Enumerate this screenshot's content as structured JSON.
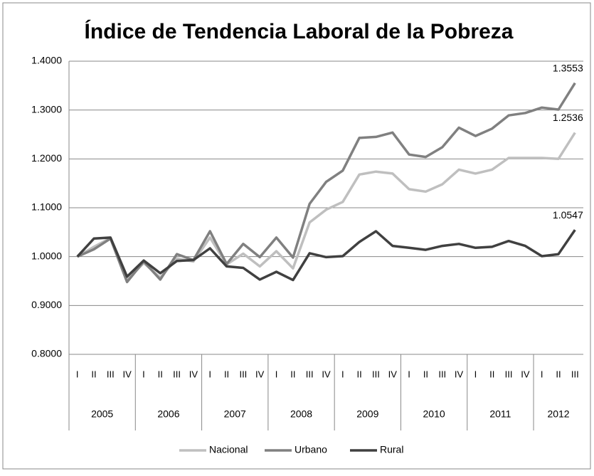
{
  "chart_data": {
    "type": "line",
    "title": "Índice de Tendencia Laboral de la Pobreza",
    "categories": [
      "I",
      "II",
      "III",
      "IV",
      "I",
      "II",
      "III",
      "IV",
      "I",
      "II",
      "III",
      "IV",
      "I",
      "II",
      "III",
      "IV",
      "I",
      "II",
      "III",
      "IV",
      "I",
      "II",
      "III",
      "IV",
      "I",
      "II",
      "III",
      "IV",
      "I",
      "II",
      "III"
    ],
    "category_groups": [
      "2005",
      "2006",
      "2007",
      "2008",
      "2009",
      "2010",
      "2011",
      "2012"
    ],
    "series": [
      {
        "name": "Nacional",
        "color": "#bfbfbf",
        "values": [
          1.0,
          1.02,
          1.038,
          0.952,
          0.987,
          0.957,
          0.996,
          0.99,
          1.039,
          0.984,
          1.006,
          0.98,
          1.011,
          0.976,
          1.07,
          1.096,
          1.112,
          1.168,
          1.174,
          1.17,
          1.138,
          1.133,
          1.148,
          1.178,
          1.17,
          1.178,
          1.202,
          1.202,
          1.202,
          1.2,
          1.2536
        ]
      },
      {
        "name": "Urbano",
        "color": "#808080",
        "values": [
          1.0,
          1.015,
          1.037,
          0.948,
          0.99,
          0.953,
          1.005,
          0.993,
          1.052,
          0.985,
          1.026,
          0.999,
          1.039,
          0.998,
          1.108,
          1.153,
          1.176,
          1.243,
          1.245,
          1.254,
          1.209,
          1.204,
          1.224,
          1.264,
          1.247,
          1.262,
          1.289,
          1.294,
          1.305,
          1.301,
          1.3553
        ]
      },
      {
        "name": "Rural",
        "color": "#404040",
        "values": [
          1.0,
          1.037,
          1.039,
          0.959,
          0.992,
          0.966,
          0.991,
          0.993,
          1.017,
          0.98,
          0.977,
          0.953,
          0.969,
          0.952,
          1.007,
          0.999,
          1.001,
          1.03,
          1.052,
          1.022,
          1.018,
          1.014,
          1.022,
          1.026,
          1.018,
          1.02,
          1.032,
          1.022,
          1.001,
          1.005,
          1.0547
        ]
      }
    ],
    "ylim": [
      0.8,
      1.4
    ],
    "yticks": [
      {
        "value": 0.8,
        "label": "0.8000"
      },
      {
        "value": 0.9,
        "label": "0.9000"
      },
      {
        "value": 1.0,
        "label": "1.0000"
      },
      {
        "value": 1.1,
        "label": "1.1000"
      },
      {
        "value": 1.2,
        "label": "1.2000"
      },
      {
        "value": 1.3,
        "label": "1.3000"
      },
      {
        "value": 1.4,
        "label": "1.4000"
      }
    ],
    "grid": true,
    "legend": "bottom"
  }
}
